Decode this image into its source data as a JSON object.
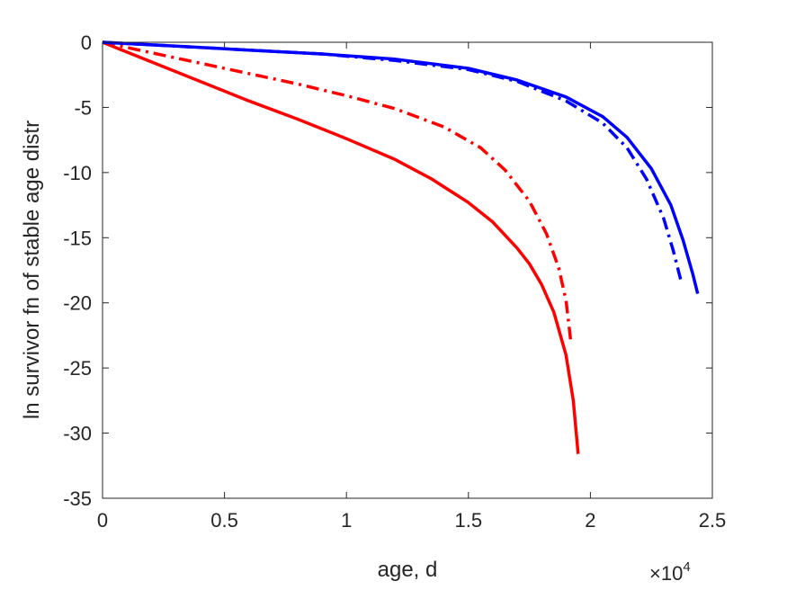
{
  "chart_data": {
    "type": "line",
    "xlabel": "age, d",
    "ylabel": "ln survivor fn of stable age distr",
    "x_exponent_label": "×10",
    "x_exponent_power": "4",
    "xlim": [
      0,
      25000
    ],
    "ylim": [
      -35,
      0
    ],
    "x_ticks": [
      0,
      5000,
      10000,
      15000,
      20000,
      25000
    ],
    "x_tick_labels": [
      "0",
      "0.5",
      "1",
      "1.5",
      "2",
      "2.5"
    ],
    "y_ticks": [
      0,
      -5,
      -10,
      -15,
      -20,
      -25,
      -30,
      -35
    ],
    "y_tick_labels": [
      "0",
      "-5",
      "-10",
      "-15",
      "-20",
      "-25",
      "-30",
      "-35"
    ],
    "grid": false,
    "series": [
      {
        "color": "#ff0000",
        "style": "solid",
        "points": [
          [
            0,
            0
          ],
          [
            2000,
            -1.5
          ],
          [
            4000,
            -3.0
          ],
          [
            6000,
            -4.5
          ],
          [
            8000,
            -5.9
          ],
          [
            10000,
            -7.4
          ],
          [
            12000,
            -9.0
          ],
          [
            13500,
            -10.5
          ],
          [
            15000,
            -12.3
          ],
          [
            16000,
            -13.8
          ],
          [
            17000,
            -15.8
          ],
          [
            17500,
            -17.0
          ],
          [
            18000,
            -18.6
          ],
          [
            18500,
            -20.7
          ],
          [
            19000,
            -24.0
          ],
          [
            19300,
            -27.5
          ],
          [
            19500,
            -31.6
          ]
        ]
      },
      {
        "color": "#ff0000",
        "style": "dashdot",
        "points": [
          [
            0,
            0
          ],
          [
            2000,
            -0.8
          ],
          [
            4000,
            -1.6
          ],
          [
            6000,
            -2.4
          ],
          [
            8000,
            -3.2
          ],
          [
            10000,
            -4.1
          ],
          [
            12000,
            -5.1
          ],
          [
            14000,
            -6.5
          ],
          [
            15500,
            -8.1
          ],
          [
            16500,
            -9.8
          ],
          [
            17500,
            -12.2
          ],
          [
            18200,
            -14.7
          ],
          [
            18700,
            -17.3
          ],
          [
            19000,
            -19.8
          ],
          [
            19200,
            -23.0
          ]
        ]
      },
      {
        "color": "#0000ff",
        "style": "solid",
        "points": [
          [
            0,
            0
          ],
          [
            3000,
            -0.3
          ],
          [
            6000,
            -0.6
          ],
          [
            9000,
            -0.9
          ],
          [
            12000,
            -1.3
          ],
          [
            15000,
            -2.0
          ],
          [
            17000,
            -2.9
          ],
          [
            19000,
            -4.2
          ],
          [
            20500,
            -5.7
          ],
          [
            21500,
            -7.3
          ],
          [
            22500,
            -9.7
          ],
          [
            23300,
            -12.5
          ],
          [
            23800,
            -15.2
          ],
          [
            24200,
            -17.8
          ],
          [
            24400,
            -19.3
          ]
        ]
      },
      {
        "color": "#0000ff",
        "style": "dashdot",
        "points": [
          [
            0,
            0
          ],
          [
            3000,
            -0.3
          ],
          [
            6000,
            -0.6
          ],
          [
            9000,
            -0.9
          ],
          [
            12000,
            -1.4
          ],
          [
            15000,
            -2.1
          ],
          [
            17000,
            -3.0
          ],
          [
            19000,
            -4.5
          ],
          [
            20500,
            -6.2
          ],
          [
            21500,
            -8.1
          ],
          [
            22300,
            -10.5
          ],
          [
            23000,
            -13.5
          ],
          [
            23400,
            -16.0
          ],
          [
            23700,
            -18.2
          ]
        ]
      }
    ]
  }
}
